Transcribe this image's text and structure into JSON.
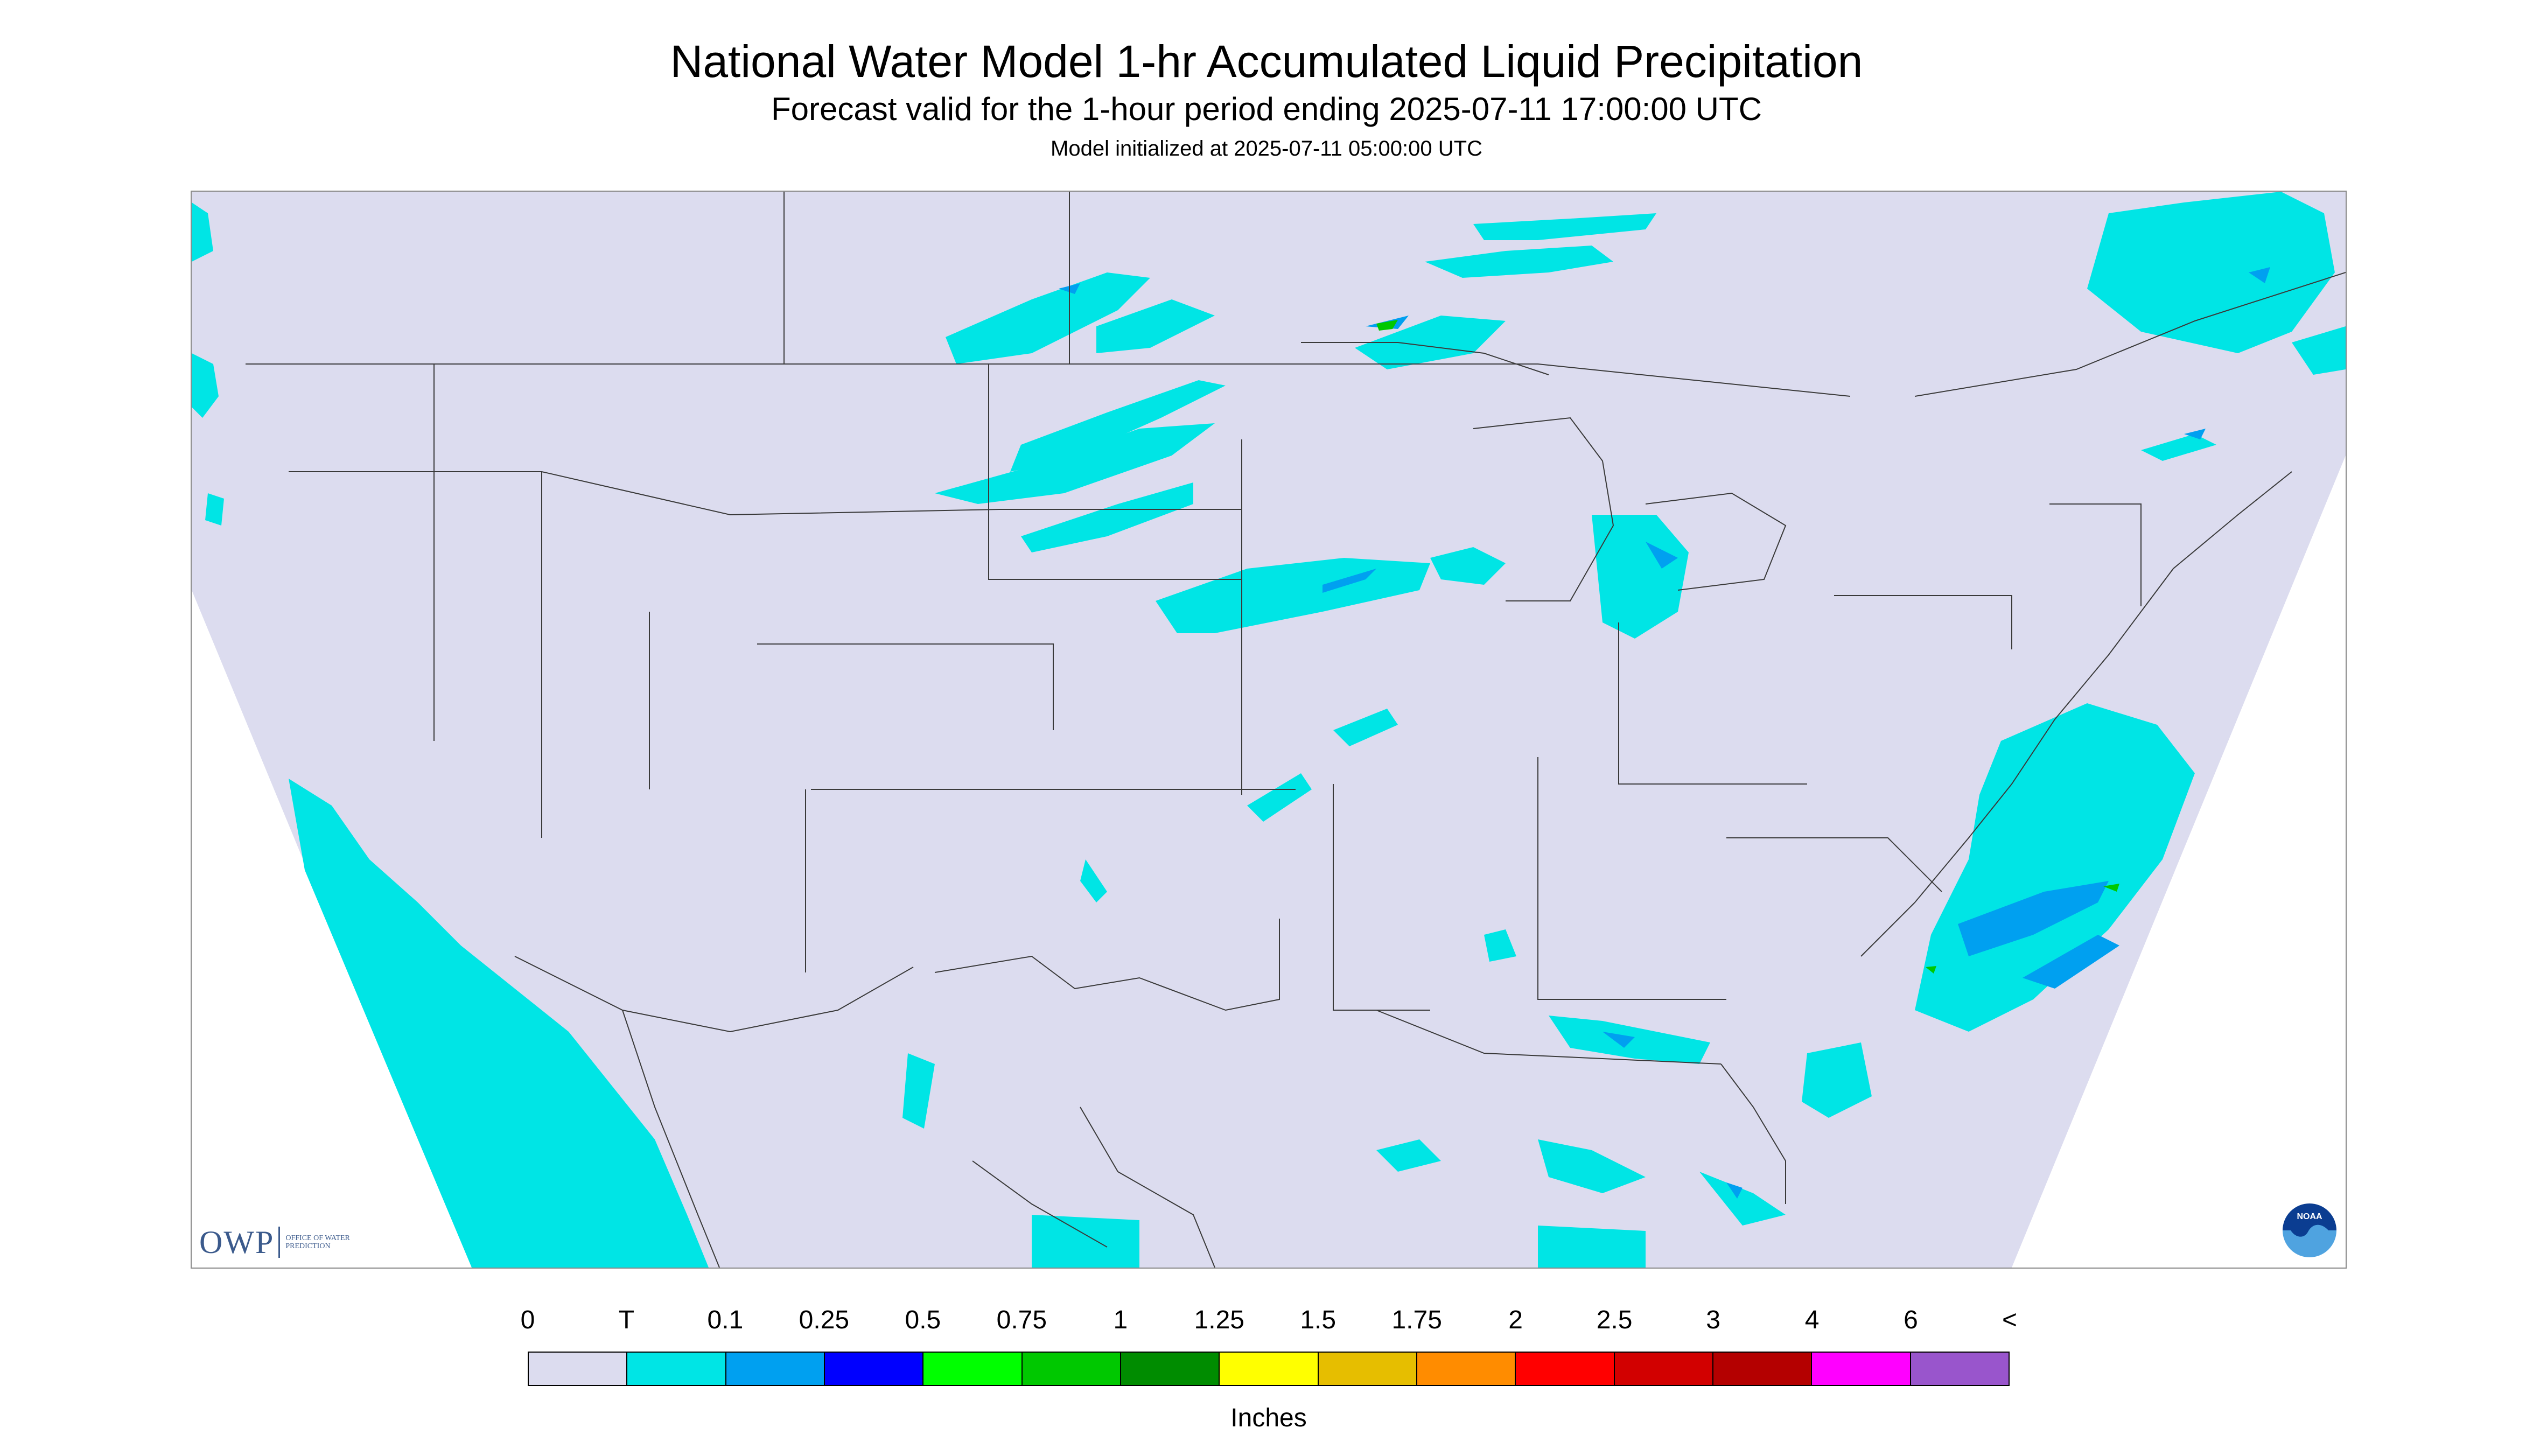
{
  "header": {
    "title": "National Water Model 1-hr Accumulated Liquid Precipitation",
    "subtitle": "Forecast valid for the 1-hour period ending 2025-07-11 17:00:00 UTC",
    "init_line": "Model initialized at 2025-07-11 05:00:00 UTC"
  },
  "logos": {
    "owp_mark": "OWP",
    "owp_text": "OFFICE OF WATER PREDICTION",
    "noaa_text": "NOAA",
    "noaa_icon": "noaa-logo-icon"
  },
  "legend": {
    "ticks": [
      "0",
      "T",
      "0.1",
      "0.25",
      "0.5",
      "0.75",
      "1",
      "1.25",
      "1.5",
      "1.75",
      "2",
      "2.5",
      "3",
      "4",
      "6",
      "<"
    ],
    "colors": [
      "#dcdcef",
      "#00e5e5",
      "#00a0f0",
      "#0000ff",
      "#00ff00",
      "#00c800",
      "#008c00",
      "#ffff00",
      "#e6be00",
      "#ff8c00",
      "#ff0000",
      "#d20000",
      "#b40000",
      "#ff00ff",
      "#9955cc"
    ],
    "units": "Inches"
  },
  "map": {
    "background_color": "#dcdcef",
    "outside_color": "#ffffff",
    "boundary_color": "#3a3a3a"
  }
}
